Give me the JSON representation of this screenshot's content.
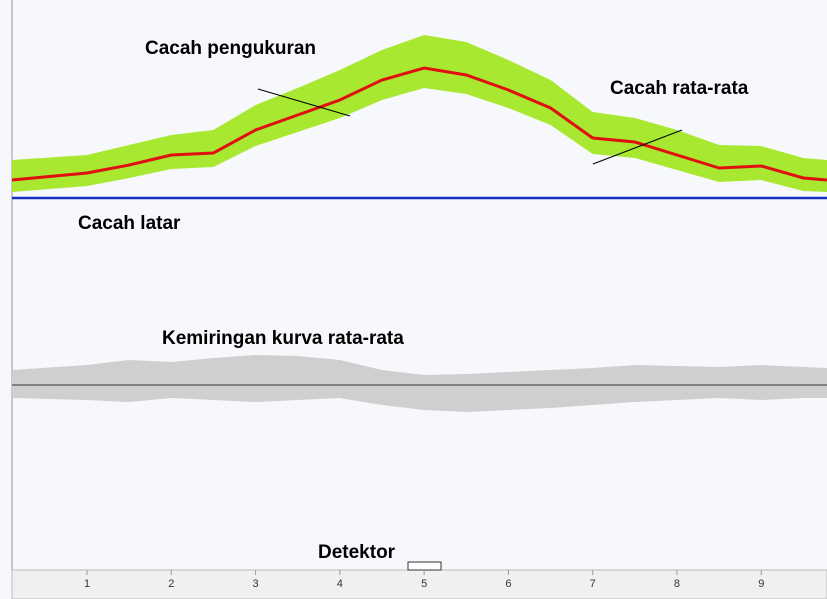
{
  "chart_data": {
    "type": "line",
    "annotations": [
      "Cacah pengukuran",
      "Cacah rata-rata",
      "Cacah latar",
      "Kemiringan kurva rata-rata",
      "Detektor"
    ],
    "xlim": [
      0.11,
      9.78
    ],
    "ylim": [
      0,
      570
    ],
    "xticks": [
      1,
      2,
      3,
      4,
      5,
      6,
      7,
      8,
      9
    ],
    "x": [
      0.11,
      1,
      1.5,
      2,
      2.5,
      3,
      3.5,
      4,
      4.5,
      5,
      5.5,
      6,
      6.5,
      7,
      7.5,
      8,
      8.5,
      9,
      9.5,
      9.78
    ],
    "series": [
      {
        "type": "line",
        "color": "#e01010",
        "values": [
          390,
          397,
          405,
          415,
          417,
          440,
          455,
          470,
          490,
          502,
          495,
          480,
          462,
          432,
          428,
          415,
          402,
          404,
          392,
          390
        ]
      },
      {
        "type": "band",
        "color": "#a8e830",
        "high": [
          410,
          415,
          425,
          435,
          440,
          465,
          482,
          500,
          520,
          535,
          528,
          510,
          490,
          458,
          452,
          440,
          425,
          424,
          412,
          410
        ],
        "low": [
          378,
          384,
          392,
          401,
          403,
          424,
          438,
          452,
          470,
          482,
          476,
          462,
          445,
          416,
          412,
          400,
          388,
          390,
          379,
          378
        ]
      },
      {
        "type": "hline",
        "color": "#1a2fc0",
        "value": 372
      },
      {
        "type": "band",
        "color": "#cfcfcf",
        "high": [
          200,
          205,
          210,
          208,
          212,
          215,
          214,
          210,
          200,
          195,
          196,
          198,
          200,
          202,
          205,
          204,
          203,
          205,
          203,
          202
        ],
        "low": [
          172,
          170,
          168,
          172,
          170,
          168,
          170,
          172,
          165,
          160,
          158,
          160,
          162,
          165,
          168,
          170,
          172,
          170,
          172,
          172
        ]
      },
      {
        "type": "hline",
        "color": "#505050",
        "value": 185
      }
    ]
  }
}
